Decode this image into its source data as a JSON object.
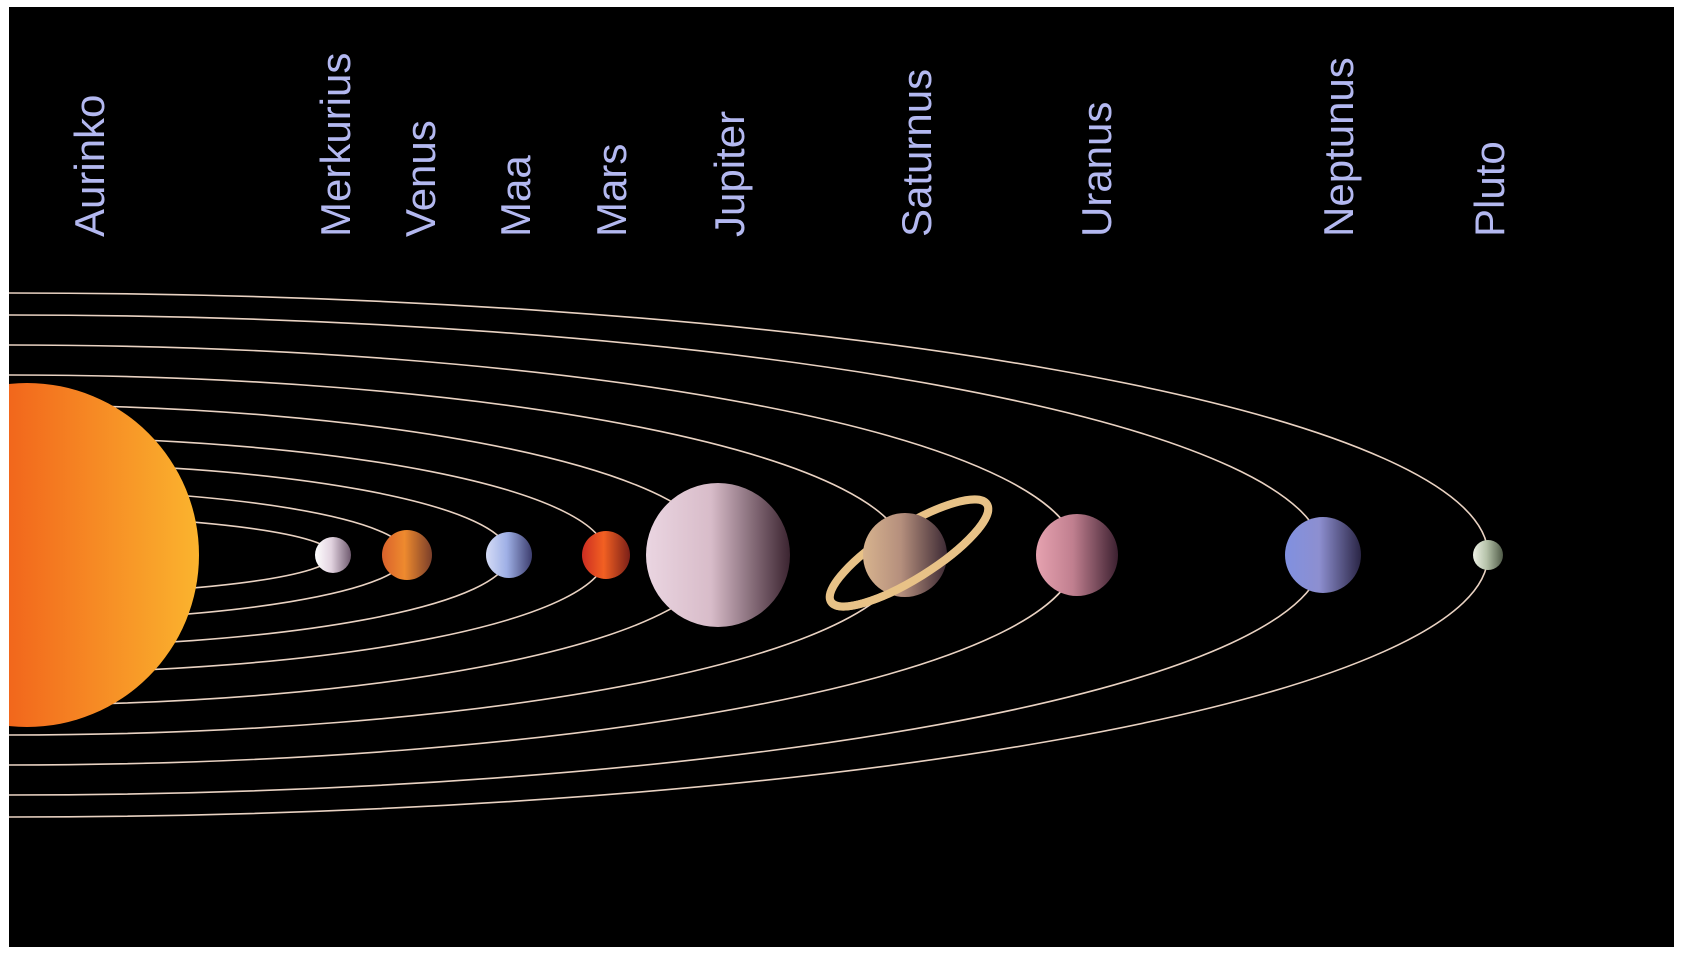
{
  "diagram": {
    "background": "#000000",
    "orbit_color": "#e9d2c2",
    "label_color": "#b3b8f0",
    "bodies": [
      {
        "id": "sun",
        "label": "Aurinko",
        "colors": [
          "#e8332a",
          "#f2671c",
          "#fbb42e"
        ]
      },
      {
        "id": "mercury",
        "label": "Merkurius",
        "colors": [
          "#ffffff",
          "#e2d3e0",
          "#6f5a6f"
        ]
      },
      {
        "id": "venus",
        "label": "Venus",
        "colors": [
          "#d9622c",
          "#ee8a2e",
          "#7a3e2a"
        ]
      },
      {
        "id": "earth",
        "label": "Maa",
        "colors": [
          "#d5dcf6",
          "#9fb0e6",
          "#3c3d6e"
        ]
      },
      {
        "id": "mars",
        "label": "Mars",
        "colors": [
          "#cc2d22",
          "#f26022",
          "#7a1f18"
        ]
      },
      {
        "id": "jupiter",
        "label": "Jupiter",
        "colors": [
          "#ead5e1",
          "#d8bcc9",
          "#3b2430"
        ]
      },
      {
        "id": "saturn",
        "label": "Saturnus",
        "colors": [
          "#d7b38e",
          "#b58f7d",
          "#3d2a34"
        ],
        "ring": "#e8c287"
      },
      {
        "id": "uranus",
        "label": "Uranus",
        "colors": [
          "#e6a2b0",
          "#c07f8f",
          "#3c2030"
        ]
      },
      {
        "id": "neptune",
        "label": "Neptunus",
        "colors": [
          "#8090e0",
          "#8d8fd0",
          "#2a2545"
        ]
      },
      {
        "id": "pluto",
        "label": "Pluto",
        "colors": [
          "#eef2e6",
          "#b6c3aa",
          "#4f5a47"
        ]
      }
    ]
  }
}
